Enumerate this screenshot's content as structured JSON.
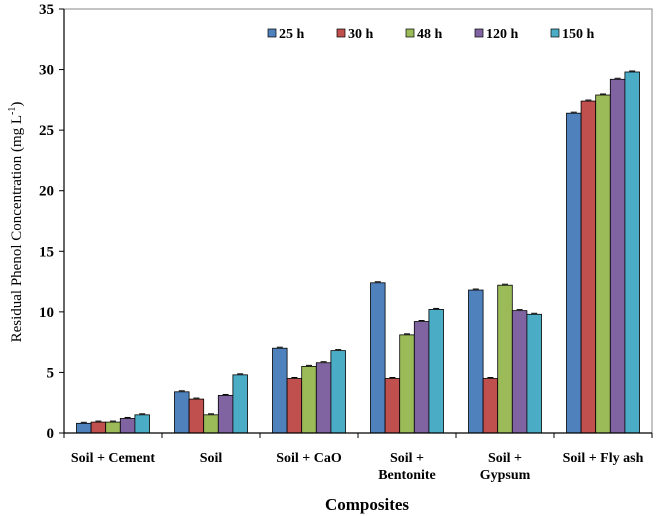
{
  "chart_data": {
    "type": "bar",
    "xlabel": "Composites",
    "ylabel": "Residual Phenol Concentration (mg L",
    "ylabel_sup": "-1",
    "ylabel_close": ")",
    "ylim": [
      0,
      35
    ],
    "yticks": [
      0,
      5,
      10,
      15,
      20,
      25,
      30,
      35
    ],
    "grid": false,
    "legend_position": "top-right",
    "categories": [
      [
        "Soil + Cement"
      ],
      [
        "Soil"
      ],
      [
        "Soil + CaO"
      ],
      [
        "Soil +",
        "Bentonite"
      ],
      [
        "Soil +",
        "Gypsum"
      ],
      [
        "Soil + Fly ash"
      ]
    ],
    "series": [
      {
        "name": "25 h",
        "color": "#4f81bd",
        "values": [
          0.8,
          3.4,
          7.0,
          12.4,
          11.8,
          26.4
        ]
      },
      {
        "name": "30 h",
        "color": "#c0504d",
        "values": [
          0.9,
          2.8,
          4.5,
          4.5,
          4.5,
          27.4
        ]
      },
      {
        "name": "48 h",
        "color": "#9bbb59",
        "values": [
          0.9,
          1.5,
          5.5,
          8.1,
          12.2,
          27.9
        ]
      },
      {
        "name": "120 h",
        "color": "#8064a2",
        "values": [
          1.2,
          3.1,
          5.8,
          9.2,
          10.1,
          29.2
        ]
      },
      {
        "name": "150 h",
        "color": "#4bacc6",
        "values": [
          1.5,
          4.8,
          6.8,
          10.2,
          9.8,
          29.8
        ]
      }
    ]
  }
}
